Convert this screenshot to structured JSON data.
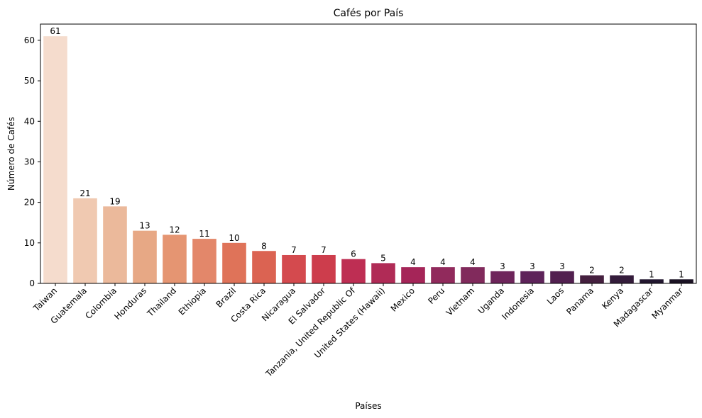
{
  "chart_data": {
    "type": "bar",
    "title": "Cafés por País",
    "xlabel": "Países",
    "ylabel": "Número de Cafés",
    "ylim": [
      0,
      64
    ],
    "yticks": [
      0,
      10,
      20,
      30,
      40,
      50,
      60
    ],
    "grid": false,
    "categories": [
      "Taiwan",
      "Guatemala",
      "Colombia",
      "Honduras",
      "Thailand",
      "Ethiopia",
      "Brazil",
      "Costa Rica",
      "Nicaragua",
      "El Salvador",
      "Tanzania, United Republic Of",
      "United States (Hawaii)",
      "Mexico",
      "Peru",
      "Vietnam",
      "Uganda",
      "Indonesia",
      "Laos",
      "Panama",
      "Kenya",
      "Madagascar",
      "Myanmar"
    ],
    "values": [
      61,
      21,
      19,
      13,
      12,
      11,
      10,
      8,
      7,
      7,
      6,
      5,
      4,
      4,
      4,
      3,
      3,
      3,
      2,
      2,
      1,
      1
    ],
    "colors": [
      "#f5dccd",
      "#f0c9b1",
      "#ebb99b",
      "#e7a885",
      "#e59572",
      "#e3876a",
      "#df7359",
      "#db6352",
      "#d44a4e",
      "#cd3d4c",
      "#be2e53",
      "#b02b56",
      "#a52558",
      "#912a5c",
      "#812a5c",
      "#6e255b",
      "#5e235a",
      "#522050",
      "#45203f",
      "#341c3b",
      "#231730",
      "#1b1224"
    ]
  }
}
